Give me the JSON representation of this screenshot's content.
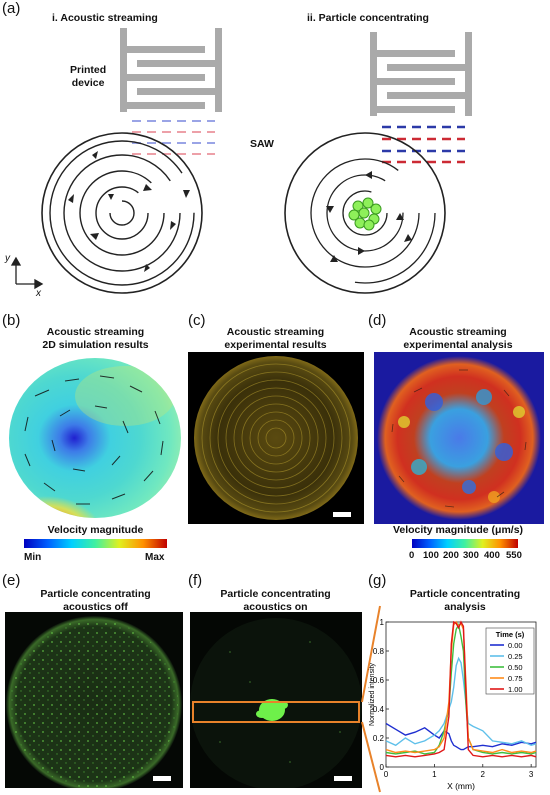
{
  "panels": {
    "a": {
      "label": "(a)",
      "title_i": "i. Acoustic streaming",
      "title_ii": "ii. Particle concentrating",
      "printed_device": [
        "Printed",
        "device"
      ],
      "saw": "SAW",
      "axis_y": "y",
      "axis_x": "x"
    },
    "b": {
      "label": "(b)",
      "title": [
        "Acoustic streaming",
        "2D simulation results"
      ],
      "colorbar_title": "Velocity magnitude",
      "min": "Min",
      "max": "Max"
    },
    "c": {
      "label": "(c)",
      "title": [
        "Acoustic streaming",
        "experimental results"
      ]
    },
    "d": {
      "label": "(d)",
      "title": [
        "Acoustic streaming",
        "experimental analysis"
      ],
      "colorbar_title": "Velocity magnitude (μm/s)",
      "ticks": [
        "0",
        "100",
        "200",
        "300",
        "400",
        "550"
      ]
    },
    "e": {
      "label": "(e)",
      "title": [
        "Particle concentrating",
        "acoustics off"
      ]
    },
    "f": {
      "label": "(f)",
      "title": [
        "Particle concentrating",
        "acoustics on"
      ]
    },
    "g": {
      "label": "(g)",
      "title": [
        "Particle concentrating",
        "analysis"
      ]
    }
  },
  "colors": {
    "saw_blue": "#3a4fd0",
    "saw_red": "#d0303a",
    "particle_yellow": "#e8d84a",
    "particle_green": "#6ee04a"
  },
  "chart_data": {
    "type": "line",
    "xlabel": "X (mm)",
    "ylabel": "Normalized intensity",
    "xlim": [
      0,
      3.1
    ],
    "ylim": [
      0,
      1
    ],
    "xticks": [
      "0",
      "1",
      "2",
      "3"
    ],
    "yticks": [
      "0",
      "0.2",
      "0.4",
      "0.6",
      "0.8",
      "1"
    ],
    "legend_title": "Time (s)",
    "legend_position": "top-right",
    "x": [
      0.0,
      0.2,
      0.4,
      0.6,
      0.8,
      1.0,
      1.1,
      1.2,
      1.3,
      1.35,
      1.4,
      1.45,
      1.5,
      1.55,
      1.6,
      1.65,
      1.7,
      1.8,
      2.0,
      2.2,
      2.4,
      2.6,
      2.8,
      3.0,
      3.1
    ],
    "series": [
      {
        "name": "0.00",
        "color": "#1f2fd0",
        "values": [
          0.3,
          0.26,
          0.22,
          0.24,
          0.27,
          0.22,
          0.2,
          0.25,
          0.23,
          0.18,
          0.15,
          0.14,
          0.13,
          0.12,
          0.12,
          0.13,
          0.14,
          0.14,
          0.15,
          0.14,
          0.16,
          0.15,
          0.17,
          0.16,
          0.17
        ]
      },
      {
        "name": "0.25",
        "color": "#5fc0ea",
        "values": [
          0.18,
          0.15,
          0.2,
          0.16,
          0.18,
          0.22,
          0.25,
          0.3,
          0.4,
          0.45,
          0.55,
          0.7,
          0.75,
          0.72,
          0.6,
          0.45,
          0.3,
          0.28,
          0.25,
          0.18,
          0.17,
          0.16,
          0.18,
          0.15,
          0.16
        ]
      },
      {
        "name": "0.50",
        "color": "#3fbf3f",
        "values": [
          0.1,
          0.09,
          0.1,
          0.11,
          0.09,
          0.1,
          0.15,
          0.25,
          0.4,
          0.65,
          0.85,
          0.95,
          0.98,
          0.9,
          0.8,
          0.45,
          0.2,
          0.12,
          0.1,
          0.09,
          0.1,
          0.09,
          0.1,
          0.09,
          0.1
        ]
      },
      {
        "name": "0.75",
        "color": "#ff8c1a",
        "values": [
          0.12,
          0.1,
          0.11,
          0.1,
          0.11,
          0.12,
          0.14,
          0.2,
          0.45,
          0.8,
          0.98,
          1.0,
          0.97,
          0.99,
          0.95,
          0.6,
          0.2,
          0.12,
          0.11,
          0.1,
          0.12,
          0.1,
          0.11,
          0.1,
          0.11
        ]
      },
      {
        "name": "1.00",
        "color": "#e01818",
        "values": [
          0.08,
          0.07,
          0.08,
          0.07,
          0.08,
          0.09,
          0.1,
          0.12,
          0.35,
          0.85,
          1.0,
          0.99,
          0.96,
          1.0,
          0.97,
          0.55,
          0.12,
          0.08,
          0.07,
          0.08,
          0.07,
          0.08,
          0.07,
          0.08,
          0.07
        ]
      }
    ]
  }
}
